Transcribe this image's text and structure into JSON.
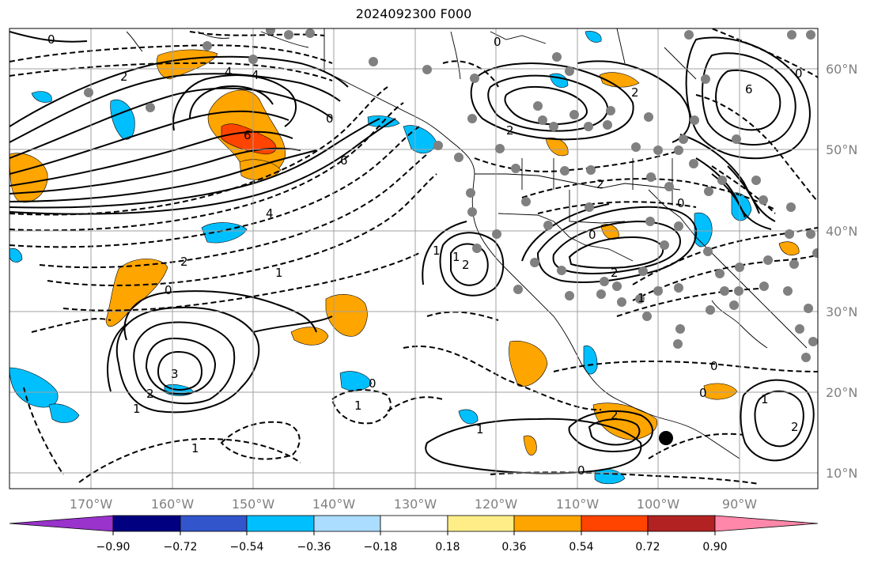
{
  "title": "2024092300 F000",
  "lon_labels": [
    "170°W",
    "160°W",
    "150°W",
    "140°W",
    "130°W",
    "120°W",
    "110°W",
    "100°W",
    "90°W"
  ],
  "lat_labels": [
    "60°N",
    "50°N",
    "40°N",
    "30°N",
    "20°N",
    "10°N"
  ],
  "colorbar": {
    "colors": [
      "#9933cc",
      "#000080",
      "#3355cc",
      "#00bfff",
      "#aaddff",
      "#ffffff",
      "#ffee88",
      "#ffa500",
      "#ff4400",
      "#b22222",
      "#ff88aa"
    ],
    "tick_labels": [
      "−0.90",
      "−0.72",
      "−0.54",
      "−0.36",
      "−0.18",
      "0.18",
      "0.36",
      "0.54",
      "0.72",
      "0.90"
    ]
  },
  "contour_labels": [
    "2",
    "4",
    "0",
    "6",
    "0",
    "6",
    "4",
    "2",
    "0",
    "1",
    "0",
    "2",
    "3",
    "2",
    "1",
    "0",
    "1",
    "1",
    "1",
    "0",
    "2",
    "0",
    "2",
    "6",
    "0",
    "2",
    "1",
    "0",
    "0",
    "1",
    "2",
    "1",
    "0",
    "1",
    "4",
    "2",
    "2"
  ],
  "colors": {
    "orange": "#ffa500",
    "red": "#ff4400",
    "blue": "#00bfff",
    "grid": "#a0a0a0",
    "station": "#808080"
  }
}
